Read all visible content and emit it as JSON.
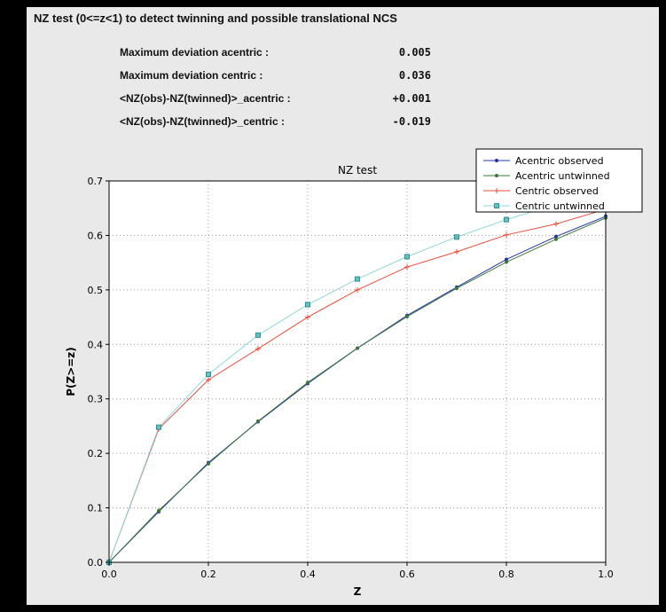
{
  "header": {
    "title": "NZ test (0<=z<1) to detect twinning and possible translational NCS"
  },
  "stats": {
    "rows": [
      {
        "label": "Maximum deviation acentric :",
        "value": "0.005"
      },
      {
        "label": "Maximum deviation centric :",
        "value": "0.036"
      },
      {
        "label": "<NZ(obs)-NZ(twinned)>_acentric :",
        "value": "+0.001"
      },
      {
        "label": "<NZ(obs)-NZ(twinned)>_centric :",
        "value": "-0.019"
      }
    ]
  },
  "chart_data": {
    "type": "line",
    "title": "NZ test",
    "xlabel": "Z",
    "ylabel": "P(Z>=z)",
    "xlim": [
      0.0,
      1.0
    ],
    "ylim": [
      0.0,
      0.7
    ],
    "xticks": [
      0.0,
      0.2,
      0.4,
      0.6,
      0.8,
      1.0
    ],
    "yticks": [
      0.0,
      0.1,
      0.2,
      0.3,
      0.4,
      0.5,
      0.6,
      0.7
    ],
    "grid": "dotted",
    "legend_position": "top-right",
    "plot_bg": "#ffffff",
    "x": [
      0.0,
      0.1,
      0.2,
      0.3,
      0.4,
      0.5,
      0.6,
      0.7,
      0.8,
      0.9,
      1.0
    ],
    "series": [
      {
        "name": "Acentric observed",
        "color": "#2433a8",
        "marker": "dot",
        "values": [
          0.0,
          0.093,
          0.183,
          0.258,
          0.328,
          0.393,
          0.453,
          0.505,
          0.556,
          0.598,
          0.635
        ]
      },
      {
        "name": "Acentric untwinned",
        "color": "#3b7a3b",
        "marker": "dot",
        "values": [
          0.0,
          0.095,
          0.181,
          0.259,
          0.33,
          0.393,
          0.451,
          0.503,
          0.551,
          0.593,
          0.632
        ]
      },
      {
        "name": "Centric observed",
        "color": "#ee4a3a",
        "marker": "plus",
        "values": [
          0.0,
          0.245,
          0.335,
          0.392,
          0.45,
          0.5,
          0.542,
          0.57,
          0.601,
          0.621,
          0.648
        ]
      },
      {
        "name": "Centric untwinned",
        "color": "#8fd8d8",
        "marker": "square",
        "marker_fill": "#63c3c3",
        "marker_edge": "#2e8f8f",
        "values": [
          0.0,
          0.248,
          0.345,
          0.417,
          0.473,
          0.52,
          0.561,
          0.597,
          0.629,
          0.657,
          0.683
        ]
      }
    ]
  }
}
